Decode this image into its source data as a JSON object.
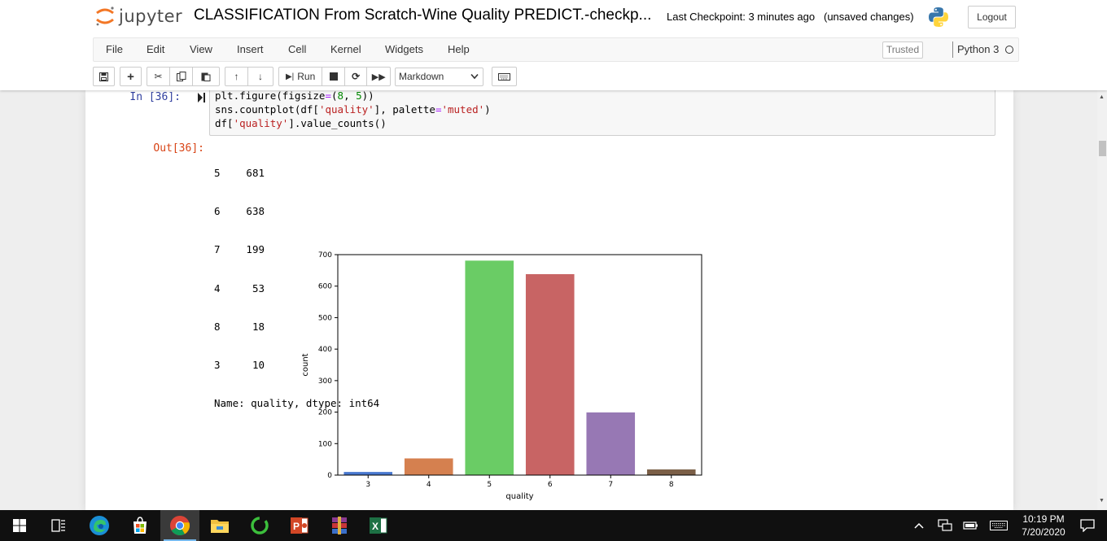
{
  "header": {
    "logo_text": "jupyter",
    "notebook_title": "CLASSIFICATION From Scratch-Wine Quality PREDICT.-checkp...",
    "checkpoint": "Last Checkpoint: 3 minutes ago",
    "unsaved": "(unsaved changes)",
    "logout_label": "Logout"
  },
  "menubar": {
    "items": [
      "File",
      "Edit",
      "View",
      "Insert",
      "Cell",
      "Kernel",
      "Widgets",
      "Help"
    ],
    "trusted_label": "Trusted",
    "kernel_name": "Python 3"
  },
  "toolbar": {
    "run_label": "Run",
    "cell_type": "Markdown"
  },
  "cell": {
    "in_prompt": "In [36]:",
    "out_prompt": "Out[36]:",
    "code": {
      "line1": {
        "a": "plt.figure(figsize",
        "op": "=",
        "b": "(",
        "n1": "8",
        "c": ", ",
        "n2": "5",
        "d": "))"
      },
      "line2": {
        "a": "sns.countplot(df[",
        "s1": "'quality'",
        "b": "], palette",
        "op": "=",
        "s2": "'muted'",
        "c": ")"
      },
      "line3": {
        "a": "df[",
        "s1": "'quality'",
        "b": "].value_counts()"
      }
    },
    "value_counts": [
      {
        "key": "5",
        "value": "681"
      },
      {
        "key": "6",
        "value": "638"
      },
      {
        "key": "7",
        "value": "199"
      },
      {
        "key": "4",
        "value": "53"
      },
      {
        "key": "8",
        "value": "18"
      },
      {
        "key": "3",
        "value": "10"
      }
    ],
    "value_counts_footer": "Name: quality, dtype: int64"
  },
  "chart_data": {
    "type": "bar",
    "categories": [
      "3",
      "4",
      "5",
      "6",
      "7",
      "8"
    ],
    "values": [
      10,
      53,
      681,
      638,
      199,
      18
    ],
    "colors": [
      "#4878cf",
      "#d5804f",
      "#6acc65",
      "#c86464",
      "#9778b4",
      "#7b5f47"
    ],
    "title": "",
    "xlabel": "quality",
    "ylabel": "count",
    "ylim": [
      0,
      700
    ],
    "yticks": [
      0,
      100,
      200,
      300,
      400,
      500,
      600,
      700
    ],
    "grid": false,
    "legend": "none"
  },
  "taskbar": {
    "apps": [
      "start",
      "task-view",
      "edge",
      "store",
      "chrome",
      "file-explorer",
      "green-app",
      "powerpoint",
      "winrar",
      "excel"
    ],
    "clock_time": "10:19 PM",
    "clock_date": "7/20/2020"
  }
}
